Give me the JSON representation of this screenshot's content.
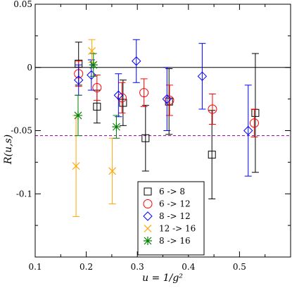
{
  "chart_data": {
    "type": "scatter",
    "xlabel": "u = 1/g²",
    "ylabel": "R(u,s)",
    "xlim": [
      0.1,
      0.6
    ],
    "ylim": [
      -0.15,
      0.05
    ],
    "xticks": [
      0.1,
      0.2,
      0.3,
      0.4,
      0.5
    ],
    "xtick_labels": [
      "0.1",
      "0.2",
      "0.3",
      "0.4",
      "0.5"
    ],
    "yticks": [
      -0.1,
      -0.05,
      0,
      0.05
    ],
    "ytick_labels": [
      "-0.1",
      "-0.05",
      "0",
      "0.05"
    ],
    "grid": false,
    "legend_position": "bottom-center",
    "reference_lines": [
      {
        "y": 0,
        "color": "#000000",
        "style": "solid"
      },
      {
        "y": -0.054,
        "color": "#8b008b",
        "style": "dashed"
      }
    ],
    "series": [
      {
        "name": "6 -> 8",
        "marker": "square",
        "color": "#000000",
        "points": [
          {
            "x": 0.185,
            "y": 0.003,
            "err": 0.017
          },
          {
            "x": 0.221,
            "y": -0.031,
            "err": 0.013
          },
          {
            "x": 0.272,
            "y": -0.028,
            "err": 0.018
          },
          {
            "x": 0.316,
            "y": -0.056,
            "err": 0.026
          },
          {
            "x": 0.362,
            "y": -0.027,
            "err": 0.026
          },
          {
            "x": 0.446,
            "y": -0.069,
            "err": 0.035
          },
          {
            "x": 0.531,
            "y": -0.036,
            "err": 0.047
          }
        ]
      },
      {
        "name": "6 -> 12",
        "marker": "circle",
        "color": "#ff0000",
        "points": [
          {
            "x": 0.185,
            "y": -0.005,
            "err": 0.01
          },
          {
            "x": 0.221,
            "y": -0.016,
            "err": 0.01
          },
          {
            "x": 0.27,
            "y": -0.024,
            "err": 0.012
          },
          {
            "x": 0.313,
            "y": -0.02,
            "err": 0.011
          },
          {
            "x": 0.363,
            "y": -0.026,
            "err": 0.012
          },
          {
            "x": 0.447,
            "y": -0.033,
            "err": 0.012
          },
          {
            "x": 0.529,
            "y": -0.044,
            "err": 0.011
          }
        ]
      },
      {
        "name": "8 -> 12",
        "marker": "diamond",
        "color": "#0000ff",
        "points": [
          {
            "x": 0.185,
            "y": -0.01,
            "err": 0.012
          },
          {
            "x": 0.21,
            "y": -0.006,
            "err": 0.012
          },
          {
            "x": 0.263,
            "y": -0.022,
            "err": 0.017
          },
          {
            "x": 0.298,
            "y": 0.005,
            "err": 0.017
          },
          {
            "x": 0.358,
            "y": -0.025,
            "err": 0.025
          },
          {
            "x": 0.427,
            "y": -0.007,
            "err": 0.026
          },
          {
            "x": 0.517,
            "y": -0.05,
            "err": 0.036
          }
        ]
      },
      {
        "name": "12 -> 16",
        "marker": "x",
        "color": "#ffa500",
        "points": [
          {
            "x": 0.18,
            "y": -0.078,
            "err": 0.04
          },
          {
            "x": 0.211,
            "y": 0.013,
            "err": 0.009
          },
          {
            "x": 0.251,
            "y": -0.082,
            "err": 0.026
          }
        ]
      },
      {
        "name": "8 -> 16",
        "marker": "asterisk",
        "color": "#008000",
        "points": [
          {
            "x": 0.184,
            "y": -0.038,
            "err": 0.016
          },
          {
            "x": 0.214,
            "y": 0.002,
            "err": 0.009
          },
          {
            "x": 0.259,
            "y": -0.047,
            "err": 0.009
          }
        ]
      }
    ]
  }
}
